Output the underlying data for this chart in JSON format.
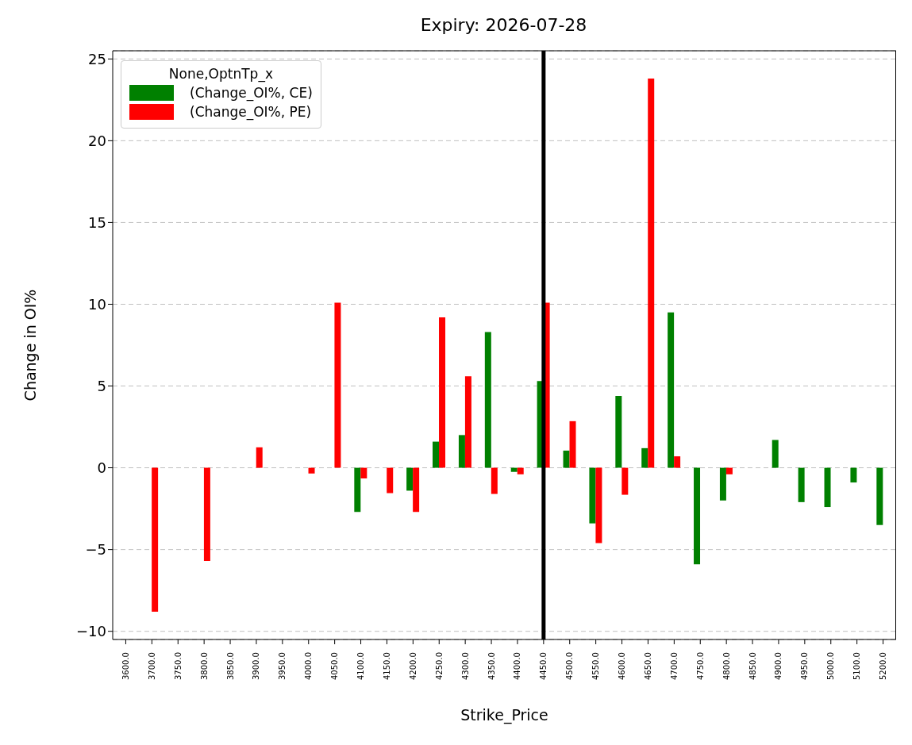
{
  "chart_data": {
    "type": "bar",
    "title": "Expiry: 2026-07-28",
    "xlabel": "Strike_Price",
    "ylabel": "Change in OI%",
    "legend_title": "None,OptnTp_x",
    "categories": [
      "3600.0",
      "3700.0",
      "3750.0",
      "3800.0",
      "3850.0",
      "3900.0",
      "3950.0",
      "4000.0",
      "4050.0",
      "4100.0",
      "4150.0",
      "4200.0",
      "4250.0",
      "4300.0",
      "4350.0",
      "4400.0",
      "4450.0",
      "4500.0",
      "4550.0",
      "4600.0",
      "4650.0",
      "4700.0",
      "4750.0",
      "4800.0",
      "4850.0",
      "4900.0",
      "4950.0",
      "5000.0",
      "5100.0",
      "5200.0"
    ],
    "series": [
      {
        "name": "(Change_OI%, CE)",
        "color": "#008000",
        "values": [
          null,
          null,
          null,
          null,
          null,
          null,
          null,
          null,
          null,
          -2.7,
          null,
          -1.4,
          1.6,
          2.0,
          8.3,
          -0.25,
          5.3,
          1.05,
          -3.4,
          4.4,
          1.2,
          9.5,
          -5.9,
          -2.0,
          null,
          1.7,
          -2.1,
          -2.4,
          -0.9,
          -3.5
        ]
      },
      {
        "name": "(Change_OI%, PE)",
        "color": "#ff0000",
        "values": [
          null,
          -8.8,
          null,
          -5.7,
          null,
          1.25,
          null,
          -0.35,
          10.1,
          -0.65,
          -1.55,
          -2.7,
          9.2,
          5.6,
          -1.6,
          -0.4,
          10.1,
          2.85,
          -4.6,
          -1.65,
          23.8,
          0.7,
          null,
          -0.4,
          null,
          null,
          null,
          null,
          null,
          null
        ]
      }
    ],
    "ylim": [
      -10.5,
      25.5
    ],
    "yticks": [
      -10,
      -5,
      0,
      5,
      10,
      15,
      20,
      25
    ],
    "grid": "y",
    "legend": "top left",
    "ref_lines": [
      {
        "axis": "x",
        "value": "4450.0",
        "color": "#000000"
      }
    ]
  }
}
